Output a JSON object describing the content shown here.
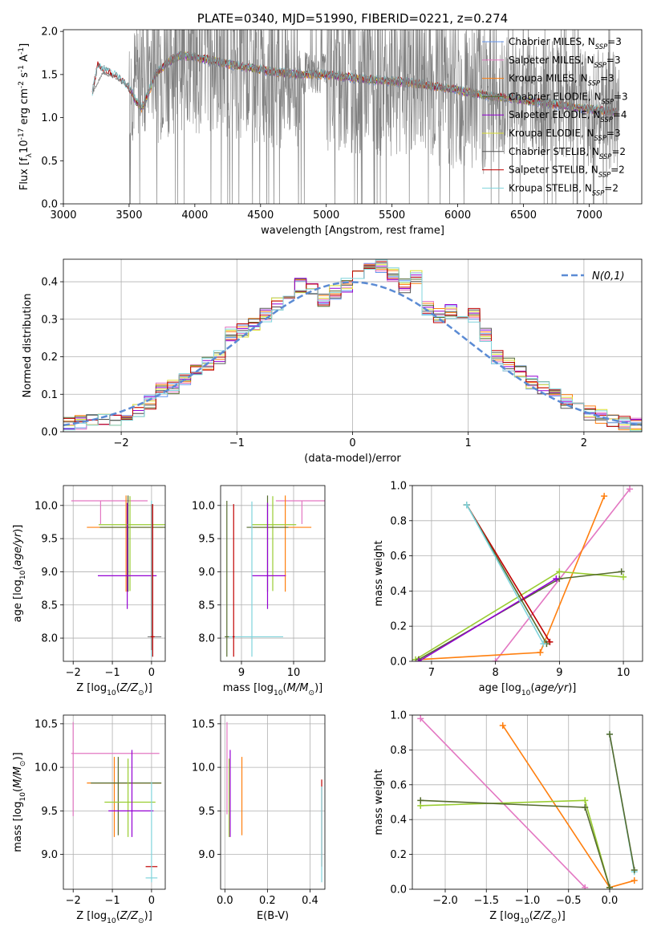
{
  "figure": {
    "background": "#ffffff"
  },
  "chart_data": [
    {
      "id": "spectrum",
      "type": "line",
      "title": "PLATE=0340, MJD=51990, FIBERID=0221, z=0.274",
      "xlabel": "wavelength [Angstrom, rest frame]",
      "ylabel": "Flux [f$_\\lambda$10$^{-17}$ erg cm$^{-2}$ s$^{-1}$ A$^{-1}$]",
      "xlim": [
        3000,
        7400
      ],
      "ylim": [
        0,
        2.02
      ],
      "xticks": [
        3000,
        3500,
        4000,
        4500,
        5000,
        5500,
        6000,
        6500,
        7000
      ],
      "yticks": [
        0.0,
        0.5,
        1.0,
        1.5,
        2.0
      ],
      "grid": false,
      "legend_position": "top-right",
      "data_color": "#808080",
      "data_range": [
        3220,
        7230
      ],
      "data_continuum": [
        [
          3220,
          1.28
        ],
        [
          3300,
          1.52
        ],
        [
          3400,
          1.46
        ],
        [
          3500,
          1.36
        ],
        [
          3600,
          1.48
        ],
        [
          3700,
          1.58
        ],
        [
          3800,
          1.68
        ],
        [
          3900,
          1.75
        ],
        [
          4000,
          1.72
        ],
        [
          4200,
          1.66
        ],
        [
          4400,
          1.62
        ],
        [
          4600,
          1.55
        ],
        [
          4800,
          1.52
        ],
        [
          5000,
          1.52
        ],
        [
          5200,
          1.48
        ],
        [
          5400,
          1.44
        ],
        [
          5600,
          1.42
        ],
        [
          5800,
          1.38
        ],
        [
          6000,
          1.34
        ],
        [
          6200,
          1.28
        ],
        [
          6400,
          1.26
        ],
        [
          6600,
          1.22
        ],
        [
          6800,
          1.18
        ],
        [
          7000,
          1.12
        ],
        [
          7230,
          1.06
        ]
      ],
      "model_continuum": [
        [
          3220,
          1.28
        ],
        [
          3260,
          1.6
        ],
        [
          3300,
          1.56
        ],
        [
          3400,
          1.48
        ],
        [
          3500,
          1.34
        ],
        [
          3550,
          1.2
        ],
        [
          3600,
          1.1
        ],
        [
          3650,
          1.3
        ],
        [
          3700,
          1.5
        ],
        [
          3800,
          1.65
        ],
        [
          3900,
          1.72
        ],
        [
          4000,
          1.7
        ],
        [
          4200,
          1.64
        ],
        [
          4400,
          1.58
        ],
        [
          4600,
          1.53
        ],
        [
          4800,
          1.5
        ],
        [
          5000,
          1.5
        ],
        [
          5200,
          1.46
        ],
        [
          5400,
          1.43
        ],
        [
          5600,
          1.41
        ],
        [
          5800,
          1.37
        ],
        [
          6000,
          1.32
        ],
        [
          6200,
          1.26
        ],
        [
          6400,
          1.22
        ],
        [
          6600,
          1.18
        ],
        [
          6800,
          1.14
        ],
        [
          7000,
          1.1
        ],
        [
          7200,
          1.06
        ]
      ],
      "series": [
        {
          "name": "Chabrier MILES, N$_{SSP}$=3",
          "color": "#6495ed"
        },
        {
          "name": "Salpeter MILES, N$_{SSP}$=3",
          "color": "#e377c2"
        },
        {
          "name": "Kroupa MILES, N$_{SSP}$=3",
          "color": "#ff7f0e"
        },
        {
          "name": "Chabrier ELODIE, N$_{SSP}$=3",
          "color": "#556b2f"
        },
        {
          "name": "Salpeter ELODIE, N$_{SSP}$=4",
          "color": "#9400d3"
        },
        {
          "name": "Kroupa ELODIE, N$_{SSP}$=3",
          "color": "#dde033"
        },
        {
          "name": "Chabrier STELIB, N$_{SSP}$=2",
          "color": "#555555"
        },
        {
          "name": "Salpeter STELIB, N$_{SSP}$=2",
          "color": "#c00000"
        },
        {
          "name": "Kroupa STELIB, N$_{SSP}$=2",
          "color": "#7fd4dc"
        }
      ]
    },
    {
      "id": "residuals",
      "type": "line",
      "xlabel": "(data-model)/error",
      "ylabel": "Normed distribution",
      "xlim": [
        -2.5,
        2.5
      ],
      "ylim": [
        0,
        0.46
      ],
      "xticks": [
        -2,
        -1,
        0,
        1,
        2
      ],
      "yticks": [
        0.0,
        0.1,
        0.2,
        0.3,
        0.4
      ],
      "grid": true,
      "legend_position": "top-right",
      "reference": {
        "name": "$\\mathcal{N}(0,1)$",
        "color": "#5b8bd4",
        "style": "dashed"
      },
      "histogram_x": [
        -2.5,
        -2.4,
        -2.3,
        -2.2,
        -2.1,
        -2.0,
        -1.9,
        -1.8,
        -1.7,
        -1.6,
        -1.5,
        -1.4,
        -1.3,
        -1.2,
        -1.1,
        -1.0,
        -0.9,
        -0.8,
        -0.7,
        -0.6,
        -0.5,
        -0.4,
        -0.3,
        -0.2,
        -0.1,
        0.0,
        0.1,
        0.2,
        0.3,
        0.4,
        0.5,
        0.6,
        0.7,
        0.8,
        0.9,
        1.0,
        1.1,
        1.2,
        1.3,
        1.4,
        1.5,
        1.6,
        1.7,
        1.8,
        1.9,
        2.0,
        2.1,
        2.2,
        2.3,
        2.4
      ],
      "histogram_y": [
        0.02,
        0.025,
        0.03,
        0.035,
        0.035,
        0.045,
        0.06,
        0.08,
        0.11,
        0.12,
        0.14,
        0.17,
        0.18,
        0.2,
        0.26,
        0.27,
        0.29,
        0.31,
        0.34,
        0.37,
        0.39,
        0.38,
        0.35,
        0.37,
        0.39,
        0.42,
        0.43,
        0.44,
        0.42,
        0.39,
        0.41,
        0.33,
        0.31,
        0.32,
        0.29,
        0.31,
        0.26,
        0.2,
        0.18,
        0.16,
        0.13,
        0.12,
        0.1,
        0.08,
        0.065,
        0.05,
        0.04,
        0.03,
        0.025,
        0.02
      ]
    },
    {
      "id": "age_vs_Z",
      "type": "scatter",
      "xlabel": "Z [log$_{10}$($Z/Z_\\odot$)]",
      "ylabel": "age  [log$_{10}$($age/yr$)]",
      "xlim": [
        -2.25,
        0.35
      ],
      "ylim": [
        7.65,
        10.3
      ],
      "xticks": [
        -2,
        -1,
        0
      ],
      "yticks": [
        8.0,
        8.5,
        9.0,
        9.5,
        10.0
      ],
      "grid": true,
      "points": [
        {
          "x": -1.3,
          "xerr": [
            0.75,
            1.2
          ],
          "y": 10.07,
          "yerr": [
            0.35,
            0
          ],
          "color": "#e377c2"
        },
        {
          "x": -0.65,
          "xerr": [
            1.0,
            0.95
          ],
          "y": 9.67,
          "yerr": [
            0.97,
            0.48
          ],
          "color": "#ff7f0e"
        },
        {
          "x": -0.6,
          "xerr": [
            0.72,
            0.95
          ],
          "y": 9.67,
          "yerr": [
            0.97,
            0.48
          ],
          "color": "#556b2f"
        },
        {
          "x": -0.55,
          "xerr": [
            0.8,
            0.95
          ],
          "y": 9.71,
          "yerr": [
            1.0,
            0.43
          ],
          "color": "#9acd32"
        },
        {
          "x": -0.62,
          "xerr": [
            0.75,
            0.75
          ],
          "y": 8.94,
          "yerr": [
            0.5,
            1.1
          ],
          "color": "#9400d3"
        },
        {
          "x": 0.0,
          "xerr": [
            0.05,
            0.05
          ],
          "y": 8.02,
          "yerr": [
            0.3,
            2.05
          ],
          "color": "#7fd4dc"
        },
        {
          "x": 0.0,
          "xerr": [
            0.1,
            0.25
          ],
          "y": 8.02,
          "yerr": [
            0.2,
            2.0
          ],
          "color": "#808080"
        },
        {
          "x": 0.03,
          "xerr": [
            0.05,
            0.05
          ],
          "y": 8.02,
          "yerr": [
            0.3,
            2.0
          ],
          "color": "#c00000"
        }
      ]
    },
    {
      "id": "age_vs_mass",
      "type": "scatter",
      "xlabel": "mass [log$_{10}$($M/M_\\odot$)]",
      "xlim": [
        8.6,
        10.6
      ],
      "ylim": [
        7.65,
        10.3
      ],
      "xticks": [
        9,
        10
      ],
      "yticks": [
        8.0,
        8.5,
        9.0,
        9.5,
        10.0
      ],
      "grid": true,
      "points": [
        {
          "x": 10.16,
          "xerr": [
            0.5,
            0.45
          ],
          "y": 10.07,
          "yerr": [
            0.35,
            0
          ],
          "color": "#e377c2"
        },
        {
          "x": 9.84,
          "xerr": [
            0.62,
            0.5
          ],
          "y": 9.67,
          "yerr": [
            0.97,
            0.48
          ],
          "color": "#ff7f0e"
        },
        {
          "x": 9.6,
          "xerr": [
            0.4,
            0.45
          ],
          "y": 9.71,
          "yerr": [
            1.0,
            0.43
          ],
          "color": "#9acd32"
        },
        {
          "x": 9.5,
          "xerr": [
            0.4,
            0.4
          ],
          "y": 9.67,
          "yerr": [
            0.97,
            0.48
          ],
          "color": "#556b2f"
        },
        {
          "x": 9.5,
          "xerr": [
            0.3,
            0.35
          ],
          "y": 8.94,
          "yerr": [
            0.5,
            1.1
          ],
          "color": "#9400d3"
        },
        {
          "x": 9.2,
          "xerr": [
            0.5,
            0.6
          ],
          "y": 8.02,
          "yerr": [
            0.3,
            2.04
          ],
          "color": "#7fd4dc"
        },
        {
          "x": 8.72,
          "xerr": [
            0.04,
            0.04
          ],
          "y": 8.02,
          "yerr": [
            0.3,
            2.05
          ],
          "color": "#556b2f"
        },
        {
          "x": 8.85,
          "xerr": [
            0.02,
            0.02
          ],
          "y": 8.02,
          "yerr": [
            0.3,
            2.0
          ],
          "color": "#c00000"
        }
      ]
    },
    {
      "id": "weight_vs_age",
      "type": "line",
      "ylabel": "mass weight",
      "xlabel": "age  [log$_{10}$($age/yr$)]",
      "xlim": [
        6.7,
        10.3
      ],
      "ylim": [
        0,
        1.0
      ],
      "xticks": [
        7,
        8,
        9,
        10
      ],
      "yticks": [
        0.0,
        0.2,
        0.4,
        0.6,
        0.8,
        1.0
      ],
      "grid": true,
      "series": [
        {
          "color": "#e377c2",
          "x": [
            8.0,
            10.1
          ],
          "y": [
            0.0,
            0.98
          ]
        },
        {
          "color": "#ff7f0e",
          "x": [
            6.8,
            8.7,
            9.7
          ],
          "y": [
            0.01,
            0.05,
            0.94
          ]
        },
        {
          "color": "#9acd32",
          "x": [
            6.75,
            9.0,
            10.0
          ],
          "y": [
            0.01,
            0.51,
            0.48
          ]
        },
        {
          "color": "#556b2f",
          "x": [
            6.8,
            9.0,
            9.97
          ],
          "y": [
            0.01,
            0.47,
            0.51
          ]
        },
        {
          "color": "#9400d3",
          "x": [
            6.8,
            8.95
          ],
          "y": [
            0.0,
            0.47
          ]
        },
        {
          "color": "#c00000",
          "x": [
            7.55,
            8.85
          ],
          "y": [
            0.89,
            0.11
          ]
        },
        {
          "color": "#556b2f",
          "x": [
            7.55,
            8.8
          ],
          "y": [
            0.89,
            0.1
          ]
        },
        {
          "color": "#7fd4dc",
          "x": [
            7.55,
            8.75
          ],
          "y": [
            0.89,
            0.1
          ]
        }
      ]
    },
    {
      "id": "mass_vs_Z",
      "type": "scatter",
      "xlabel": "Z [log$_{10}$($Z/Z_\\odot$)]",
      "ylabel": "mass [log$_{10}$($M/M_\\odot$)]",
      "xlim": [
        -2.25,
        0.35
      ],
      "ylim": [
        8.6,
        10.6
      ],
      "xticks": [
        -2,
        -1,
        0
      ],
      "yticks": [
        9.0,
        9.5,
        10.0,
        10.5
      ],
      "grid": true,
      "points": [
        {
          "x": -2.0,
          "xerr": [
            0.05,
            2.2
          ],
          "y": 10.16,
          "yerr": [
            0.72,
            0.36
          ],
          "color": "#e377c2"
        },
        {
          "x": -0.95,
          "xerr": [
            0.7,
            1.2
          ],
          "y": 9.82,
          "yerr": [
            0.62,
            0.3
          ],
          "color": "#ff7f0e"
        },
        {
          "x": -0.85,
          "xerr": [
            0.7,
            1.1
          ],
          "y": 9.82,
          "yerr": [
            0.6,
            0.3
          ],
          "color": "#556b2f"
        },
        {
          "x": -0.6,
          "xerr": [
            0.6,
            0.7
          ],
          "y": 9.6,
          "yerr": [
            0.4,
            0.5
          ],
          "color": "#9acd32"
        },
        {
          "x": -0.5,
          "xerr": [
            0.6,
            0.55
          ],
          "y": 9.5,
          "yerr": [
            0.3,
            0.7
          ],
          "color": "#9400d3"
        },
        {
          "x": 0.0,
          "xerr": [
            0.15,
            0.15
          ],
          "y": 8.86,
          "yerr": [
            0.0,
            0.0
          ],
          "color": "#c00000"
        },
        {
          "x": 0.0,
          "xerr": [
            0.15,
            0.15
          ],
          "y": 8.73,
          "yerr": [
            0.05,
            1.1
          ],
          "color": "#7fd4dc"
        }
      ]
    },
    {
      "id": "mass_vs_ebv",
      "type": "scatter",
      "xlabel": "E(B-V)",
      "xlim": [
        -0.02,
        0.47
      ],
      "ylim": [
        8.6,
        10.6
      ],
      "xticks": [
        0.0,
        0.2,
        0.4
      ],
      "yticks": [
        9.0,
        9.5,
        10.0,
        10.5
      ],
      "grid": true,
      "points": [
        {
          "x": 0.01,
          "y": 10.16,
          "yerr": [
            0.7,
            0.36
          ],
          "color": "#e377c2"
        },
        {
          "x": 0.02,
          "y": 9.6,
          "yerr": [
            0.4,
            0.5
          ],
          "color": "#9acd32"
        },
        {
          "x": 0.025,
          "y": 9.5,
          "yerr": [
            0.3,
            0.7
          ],
          "color": "#9400d3"
        },
        {
          "x": 0.08,
          "y": 9.82,
          "yerr": [
            0.6,
            0.3
          ],
          "color": "#ff7f0e"
        },
        {
          "x": 0.455,
          "y": 8.86,
          "yerr": [
            0.0,
            1.0
          ],
          "color": "#c00000"
        },
        {
          "x": 0.455,
          "y": 8.73,
          "yerr": [
            0.05,
            1.05
          ],
          "color": "#7fd4dc"
        }
      ]
    },
    {
      "id": "weight_vs_Z",
      "type": "line",
      "ylabel": "mass weight",
      "xlabel": "Z [log$_{10}$($Z/Z_\\odot$)]",
      "xlim": [
        -2.4,
        0.4
      ],
      "ylim": [
        0,
        1.0
      ],
      "xticks": [
        -2.0,
        -1.5,
        -1.0,
        -0.5,
        0.0
      ],
      "yticks": [
        0.0,
        0.2,
        0.4,
        0.6,
        0.8,
        1.0
      ],
      "grid": true,
      "series": [
        {
          "color": "#e377c2",
          "x": [
            -2.3,
            -0.3
          ],
          "y": [
            0.98,
            0.01
          ]
        },
        {
          "color": "#ff7f0e",
          "x": [
            -1.3,
            0.0,
            0.3
          ],
          "y": [
            0.94,
            0.01,
            0.05
          ]
        },
        {
          "color": "#9acd32",
          "x": [
            -2.3,
            -0.3,
            0.0
          ],
          "y": [
            0.48,
            0.51,
            0.01
          ]
        },
        {
          "color": "#556b2f",
          "x": [
            -2.3,
            -0.3,
            0.0
          ],
          "y": [
            0.51,
            0.47,
            0.01
          ]
        },
        {
          "color": "#7fd4dc",
          "x": [
            0.0,
            0.3
          ],
          "y": [
            0.89,
            0.1
          ]
        },
        {
          "color": "#556b2f",
          "x": [
            0.0,
            0.3
          ],
          "y": [
            0.89,
            0.11
          ]
        }
      ]
    }
  ]
}
